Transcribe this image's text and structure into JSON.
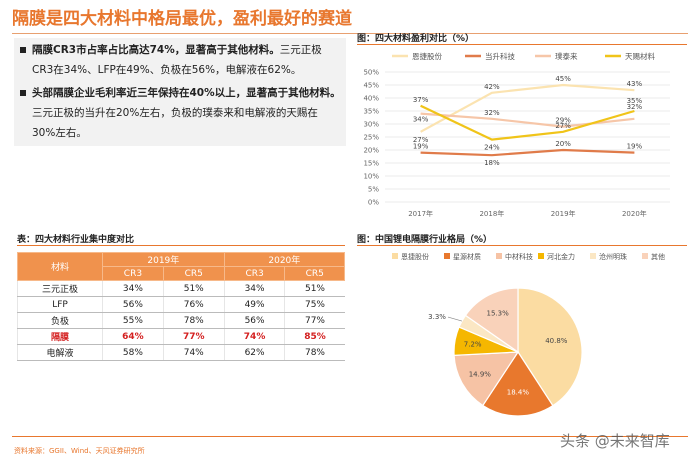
{
  "title": "隔膜是四大材料中格局最优，盈利最好的赛道",
  "bullets": [
    {
      "lines": [
        {
          "highlight": "隔膜CR3市占率占比高达74%，显著高于其他材料。",
          "rest": "三元正极"
        },
        {
          "highlight": "",
          "rest": "CR3在34%、LFP在49%、负极在56%，电解液在62%。"
        }
      ]
    },
    {
      "lines": [
        {
          "highlight": "头部隔膜企业毛利率近三年保持在40%以上，显著高于其他材料。",
          "rest": ""
        },
        {
          "highlight": "",
          "rest": "三元正极的当升在20%左右，负极的璞泰来和电解液的天赐在"
        },
        {
          "highlight": "",
          "rest": "30%左右。"
        }
      ]
    }
  ],
  "table": {
    "caption": "表：四大材料行业集中度对比",
    "head": {
      "material": "材料",
      "y2019": "2019年",
      "y2020": "2020年",
      "cr3": "CR3",
      "cr5": "CR5"
    },
    "rows": [
      {
        "name": "三元正极",
        "c": [
          "34%",
          "51%",
          "34%",
          "51%"
        ],
        "highlight": false
      },
      {
        "name": "LFP",
        "c": [
          "56%",
          "76%",
          "49%",
          "75%"
        ],
        "highlight": false
      },
      {
        "name": "负极",
        "c": [
          "55%",
          "78%",
          "56%",
          "77%"
        ],
        "highlight": false
      },
      {
        "name": "隔膜",
        "c": [
          "64%",
          "77%",
          "74%",
          "85%"
        ],
        "highlight": true
      },
      {
        "name": "电解液",
        "c": [
          "58%",
          "74%",
          "62%",
          "78%"
        ],
        "highlight": false
      }
    ]
  },
  "source": "资料来源：GGII、Wind、天风证券研究所",
  "watermark": "头条 @未来智库",
  "colors": {
    "accent": "#e8772e",
    "header_fill": "#f0924d",
    "highlight_text": "#d42020"
  },
  "chart_data": [
    {
      "type": "line",
      "title": "图：四大材料盈利对比（%）",
      "categories": [
        "2017年",
        "2018年",
        "2019年",
        "2020年"
      ],
      "y_ticks": [
        "0%",
        "5%",
        "10%",
        "15%",
        "20%",
        "25%",
        "30%",
        "35%",
        "40%",
        "45%",
        "50%"
      ],
      "ylim": [
        0,
        50
      ],
      "legend_position": "top",
      "series": [
        {
          "name": "恩捷股份",
          "values": [
            27,
            42,
            45,
            43
          ],
          "labels": [
            "27%",
            "42%",
            "45%",
            "43%"
          ],
          "color": "#fbe3b0"
        },
        {
          "name": "当升科技",
          "values": [
            19,
            18,
            20,
            19
          ],
          "labels": [
            "19%",
            "18%",
            "20%",
            "19%"
          ],
          "color": "#e07b4a"
        },
        {
          "name": "璞泰来",
          "values": [
            34,
            32,
            29,
            32
          ],
          "labels": [
            "34%",
            "32%",
            "29%",
            "32%"
          ],
          "color": "#f6c6a8"
        },
        {
          "name": "天赐材料",
          "values": [
            37,
            24,
            27,
            35
          ],
          "labels": [
            "37%",
            "24%",
            "27%",
            "35%"
          ],
          "color": "#f0c419"
        }
      ]
    },
    {
      "type": "pie",
      "title": "图：中国锂电隔膜行业格局（%）",
      "legend_position": "top",
      "slices": [
        {
          "name": "恩捷股份",
          "value": 40.8,
          "label": "40.8%",
          "color": "#fbdca2"
        },
        {
          "name": "星源材质",
          "value": 18.4,
          "label": "18.4%",
          "color": "#e8782d"
        },
        {
          "name": "中材科技",
          "value": 14.9,
          "label": "14.9%",
          "color": "#f6c3a5"
        },
        {
          "name": "河北金力",
          "value": 7.2,
          "label": "7.2%",
          "color": "#f5b700"
        },
        {
          "name": "沧州明珠",
          "value": 3.3,
          "label": "3.3%",
          "color": "#fbe7c4"
        },
        {
          "name": "其他",
          "value": 15.3,
          "label": "15.3%",
          "color": "#f9d2ba"
        }
      ]
    }
  ]
}
